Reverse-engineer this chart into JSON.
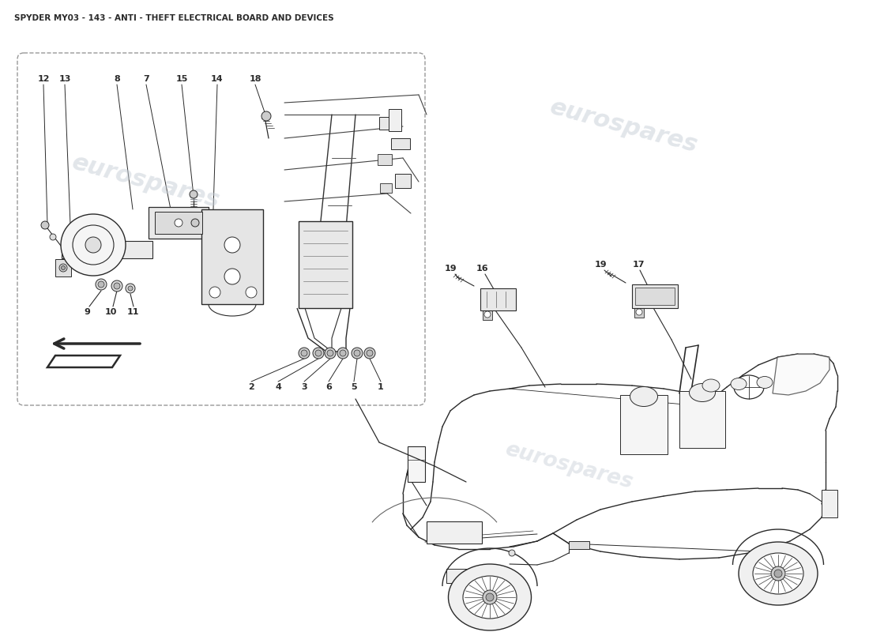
{
  "title": "SPYDER MY03 - 143 - ANTI - THEFT ELECTRICAL BOARD AND DEVICES",
  "title_fontsize": 7.5,
  "title_fontweight": "bold",
  "bg_color": "#ffffff",
  "line_color": "#2a2a2a",
  "watermark_color": "#c5cdd6",
  "watermark_text": "eurospares",
  "label_fontsize": 7.5,
  "label_fontweight": "bold"
}
